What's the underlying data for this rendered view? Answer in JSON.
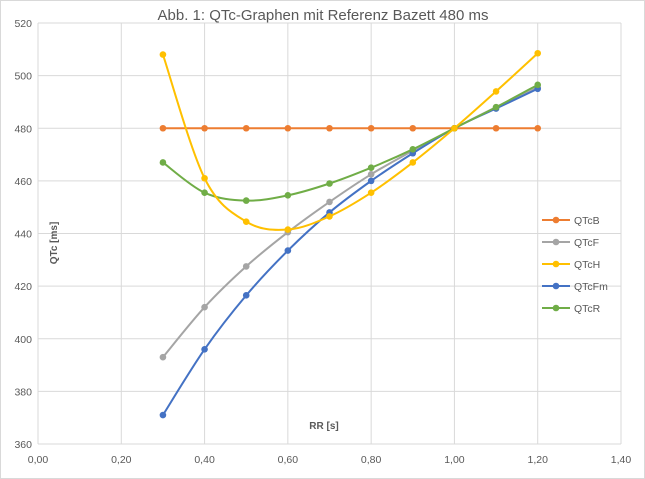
{
  "chart_data": {
    "type": "line",
    "title": "Abb. 1: QTc-Graphen mit Referenz Bazett 480 ms",
    "xlabel": "RR [s]",
    "ylabel": "QTc [ms]",
    "xlim": [
      0,
      1.4
    ],
    "ylim": [
      360,
      520
    ],
    "x_ticks": [
      "0,00",
      "0,20",
      "0,40",
      "0,60",
      "0,80",
      "1,00",
      "1,20",
      "1,40"
    ],
    "y_ticks": [
      "360",
      "380",
      "400",
      "420",
      "440",
      "460",
      "480",
      "500",
      "520"
    ],
    "grid": true,
    "legend_position": "right",
    "x": [
      0.3,
      0.4,
      0.5,
      0.6,
      0.7,
      0.8,
      0.9,
      1.0,
      1.1,
      1.2
    ],
    "series": [
      {
        "name": "QTcB",
        "color": "#ED7D31",
        "values": [
          480,
          480,
          480,
          480,
          480,
          480,
          480,
          480,
          480,
          480
        ]
      },
      {
        "name": "QTcF",
        "color": "#A5A5A5",
        "values": [
          393,
          412,
          427.5,
          440.5,
          452,
          462.5,
          471.5,
          480,
          488,
          495.5
        ]
      },
      {
        "name": "QTcH",
        "color": "#FFC000",
        "values": [
          508,
          461,
          444.5,
          441.5,
          446.5,
          455.5,
          467,
          480,
          494,
          508.5
        ]
      },
      {
        "name": "QTcFm",
        "color": "#4472C4",
        "values": [
          371,
          396,
          416.5,
          433.5,
          448,
          460,
          470.5,
          480,
          487.5,
          495
        ]
      },
      {
        "name": "QTcR",
        "color": "#70AD47",
        "values": [
          467,
          455.5,
          452.5,
          454.5,
          459,
          465,
          472,
          480,
          488,
          496.5
        ]
      }
    ]
  }
}
